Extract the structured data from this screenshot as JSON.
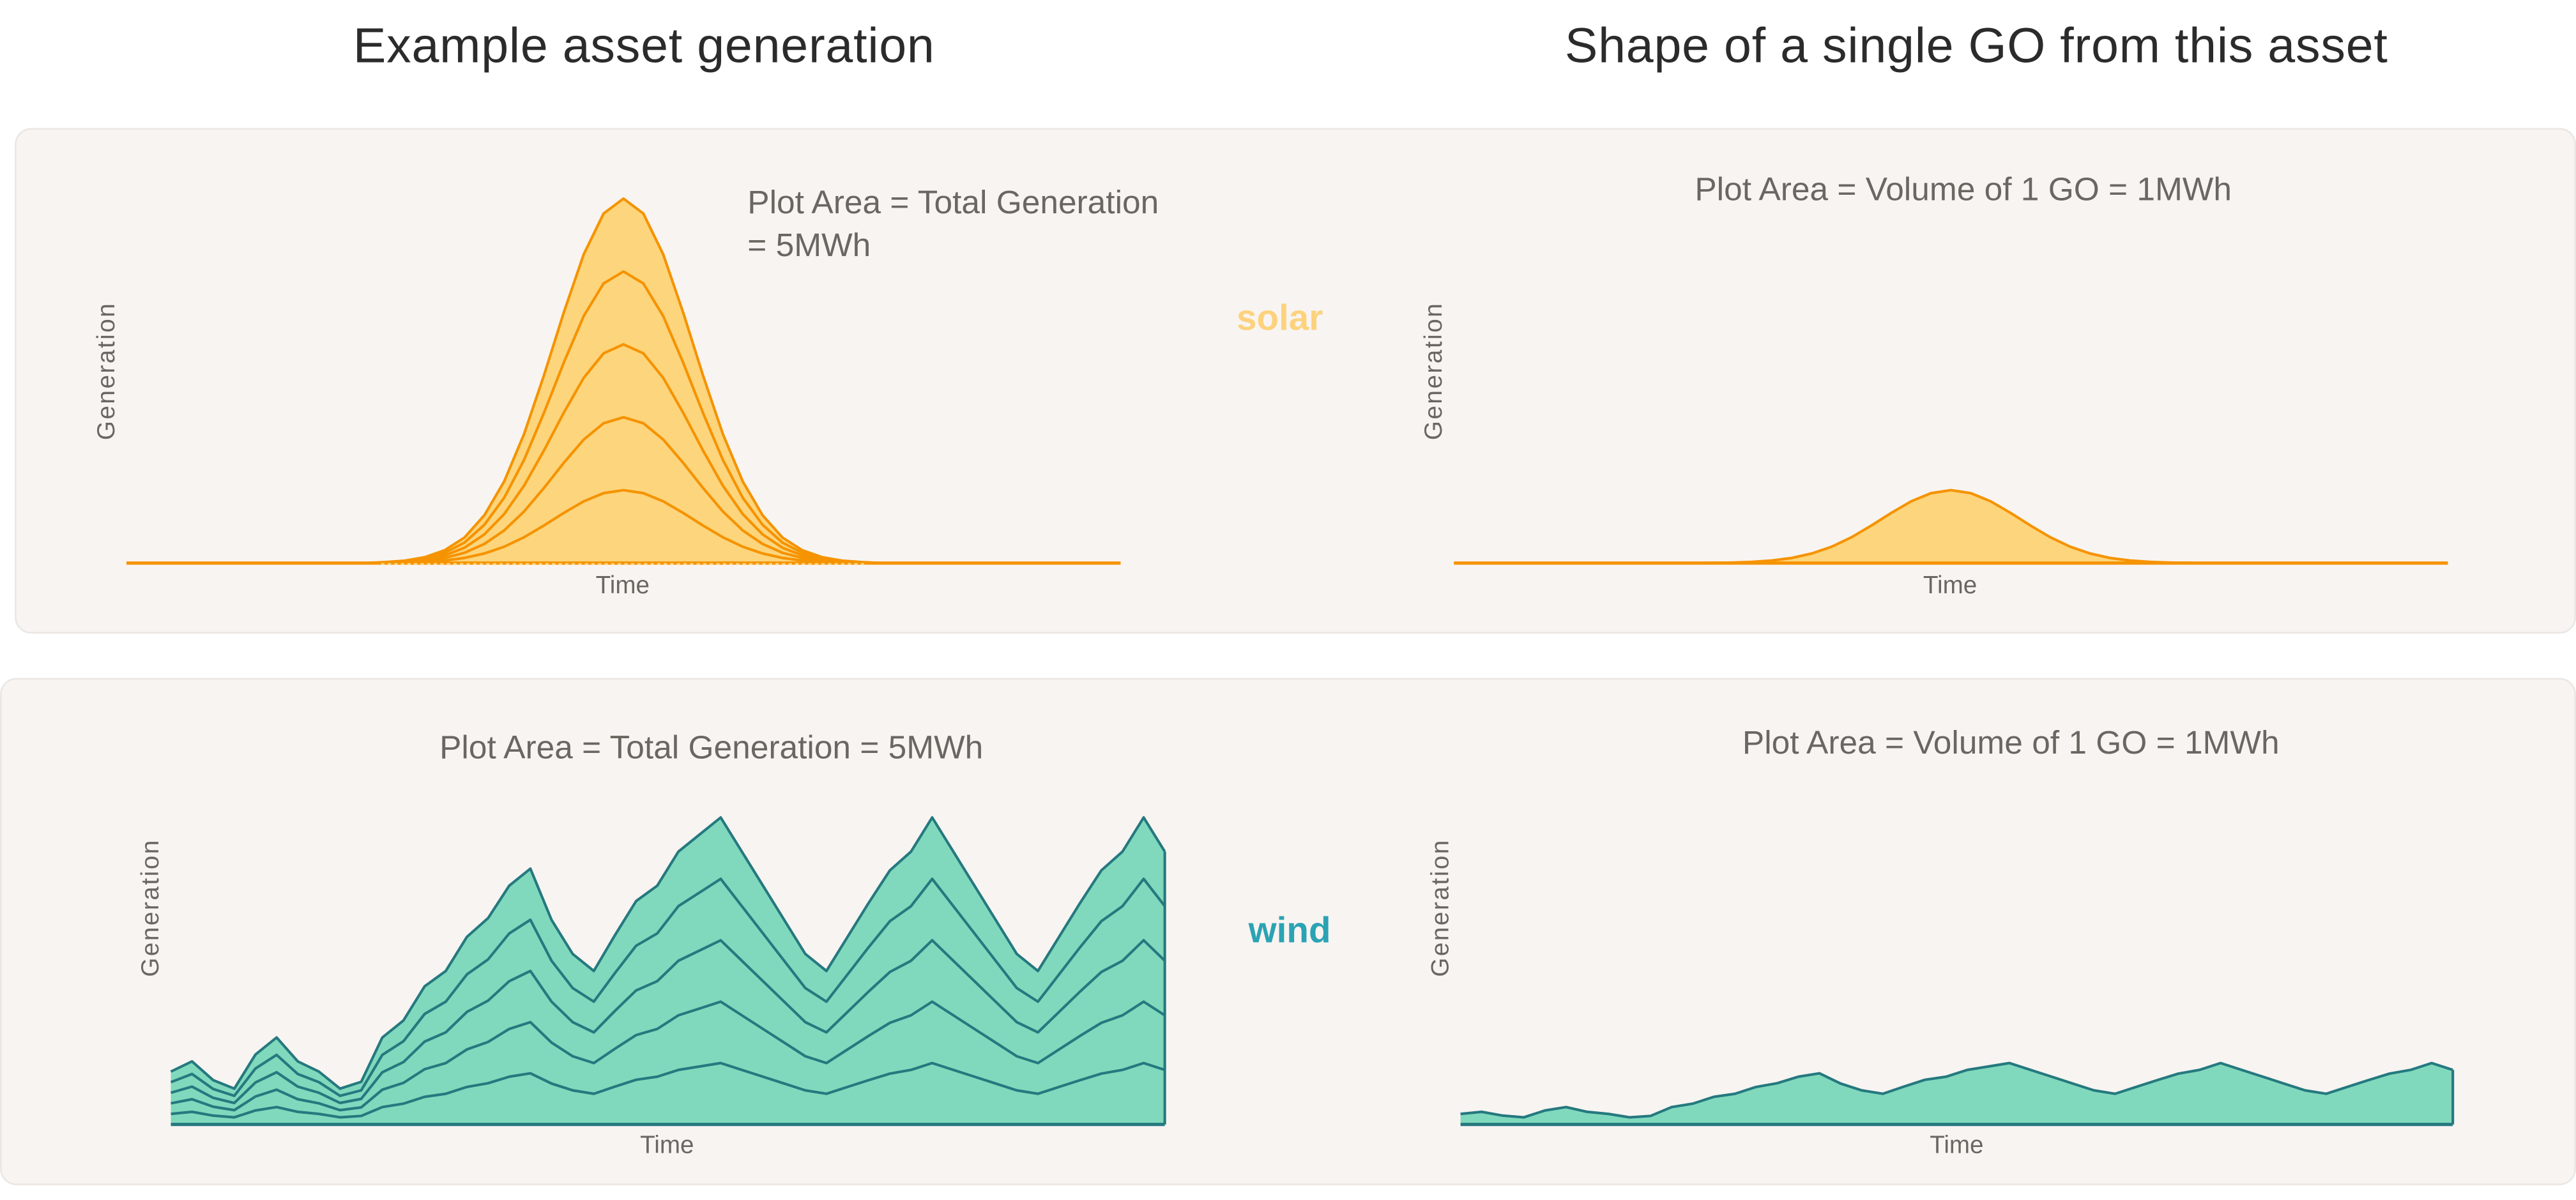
{
  "headings": {
    "left": "Example asset generation",
    "right": "Shape of a single GO from this asset"
  },
  "solar": {
    "tag": "solar",
    "total_note_line1": "Plot Area = Total Generation",
    "total_note_line2": "= 5MWh",
    "single_note": "Plot Area = Volume of 1 GO = 1MWh",
    "ylabel": "Generation",
    "xlabel": "Time"
  },
  "wind": {
    "tag": "wind",
    "total_note": "Plot Area = Total Generation = 5MWh",
    "single_note": "Plot Area = Volume of 1 GO = 1MWh",
    "ylabel": "Generation",
    "xlabel": "Time"
  },
  "colors": {
    "solar_line": "#f59300",
    "solar_fill": "#fdd57c",
    "solar_tag": "#fcd27d",
    "wind_line": "#25797f",
    "wind_fill": "#80d9bc",
    "wind_tag": "#2ba3b4"
  },
  "chart_data": [
    {
      "type": "area",
      "name": "solar",
      "title": "Example asset generation (solar)",
      "xlabel": "Time",
      "ylabel": "Generation",
      "stacked_layers": 5,
      "total_mwh": 5,
      "go_mwh": 1,
      "base_profile": [
        0,
        0,
        0,
        0,
        0,
        0,
        0,
        0,
        0,
        0,
        0,
        0,
        0,
        0.0025,
        0.0066,
        0.016,
        0.035,
        0.07,
        0.131,
        0.224,
        0.354,
        0.515,
        0.688,
        0.847,
        0.959,
        1,
        0.959,
        0.847,
        0.688,
        0.515,
        0.354,
        0.224,
        0.131,
        0.07,
        0.035,
        0.016,
        0.0066,
        0.0025,
        0,
        0,
        0,
        0,
        0,
        0,
        0,
        0,
        0,
        0,
        0,
        0,
        0
      ],
      "ylim": [
        0,
        5
      ]
    },
    {
      "type": "area",
      "name": "wind",
      "title": "Example asset generation (wind)",
      "xlabel": "Time",
      "ylabel": "Generation",
      "stacked_layers": 5,
      "total_mwh": 5,
      "go_mwh": 1,
      "base_profile": [
        0.31,
        0.37,
        0.26,
        0.21,
        0.41,
        0.51,
        0.37,
        0.31,
        0.21,
        0.25,
        0.51,
        0.61,
        0.81,
        0.9,
        1.1,
        1.21,
        1.4,
        1.5,
        1.2,
        1.0,
        0.9,
        1.11,
        1.31,
        1.4,
        1.6,
        1.7,
        1.8,
        1.6,
        1.4,
        1.2,
        1.0,
        0.9,
        1.1,
        1.3,
        1.49,
        1.6,
        1.8,
        1.6,
        1.4,
        1.2,
        1.0,
        0.9,
        1.1,
        1.3,
        1.49,
        1.6,
        1.8,
        1.6
      ],
      "ylim": [
        0,
        9
      ]
    }
  ]
}
